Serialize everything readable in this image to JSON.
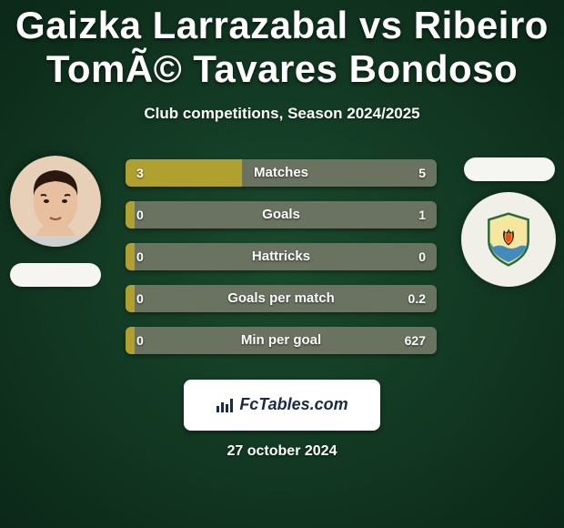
{
  "background_gradient": {
    "from": "#1a4a2e",
    "to": "#0b2818"
  },
  "heading": {
    "player1": "Gaizka Larrazabal",
    "vs": "vs",
    "player2": "Ribeiro TomÃ© Tavares Bondoso",
    "title_color": "#ffffff",
    "title_fontsize": 42
  },
  "subtitle": "Club competitions, Season 2024/2025",
  "left_player": {
    "avatar_bg": "#e8d0b8",
    "hair_color": "#2a1810",
    "skin_color": "#e8c0a0",
    "club_pill_color": "#f5f5f2"
  },
  "right_player": {
    "avatar_bg": "#f0efe8",
    "club_pill_color": "#f5f5f2",
    "badge": {
      "shield_fill": "#f5e6a0",
      "shield_stroke": "#2a6b3a",
      "flame_colors": [
        "#e84c1a",
        "#f0a020",
        "#1a1a1a"
      ],
      "water_color": "#3080c0"
    }
  },
  "stats": {
    "bar_bg": "#6a7260",
    "bar_fill": "#b0a030",
    "text_color": "#ffffff",
    "rows": [
      {
        "label": "Matches",
        "left": "3",
        "right": "5",
        "fill_pct": 37.5
      },
      {
        "label": "Goals",
        "left": "0",
        "right": "1",
        "fill_pct": 3
      },
      {
        "label": "Hattricks",
        "left": "0",
        "right": "0",
        "fill_pct": 3
      },
      {
        "label": "Goals per match",
        "left": "0",
        "right": "0.2",
        "fill_pct": 3
      },
      {
        "label": "Min per goal",
        "left": "0",
        "right": "627",
        "fill_pct": 3
      }
    ]
  },
  "footer": {
    "badge_bg": "#ffffff",
    "badge_text": "FcTables.com",
    "badge_text_color": "#1a2a4a",
    "date": "27 october 2024"
  }
}
